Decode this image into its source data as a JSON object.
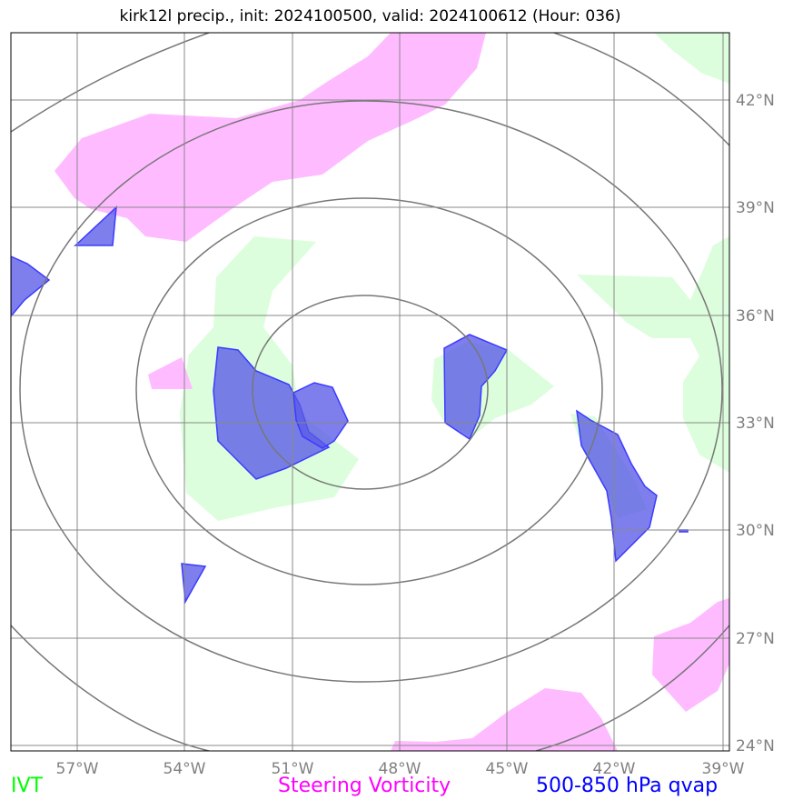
{
  "chart_data": {
    "type": "map",
    "title": "kirk12l precip., init: 2024100500, valid: 2024100612 (Hour: 036)",
    "x_ticks": [
      "57°W",
      "54°W",
      "51°W",
      "48°W",
      "45°W",
      "42°W",
      "39°W"
    ],
    "y_ticks": [
      "42°N",
      "39°N",
      "36°N",
      "33°N",
      "30°N",
      "27°N",
      "24°N"
    ],
    "lon_range": [
      -58.8,
      -38.8
    ],
    "lat_range": [
      24,
      43.9
    ],
    "grid": true,
    "range_rings_center": {
      "lon": -48.0,
      "lat": 33.3
    },
    "layers": [
      {
        "name": "IVT",
        "color": "#00ff00",
        "fill": "#d9fcd9"
      },
      {
        "name": "Steering Vorticity",
        "color": "#ff00ff",
        "fill": "#ffbbff"
      },
      {
        "name": "500-850 hPa qvap",
        "color": "#0000ff",
        "fill": "#5a5ae8"
      }
    ]
  },
  "legend": {
    "ivt": "IVT",
    "vorticity": "Steering Vorticity",
    "qvap": "500-850 hPa qvap"
  }
}
